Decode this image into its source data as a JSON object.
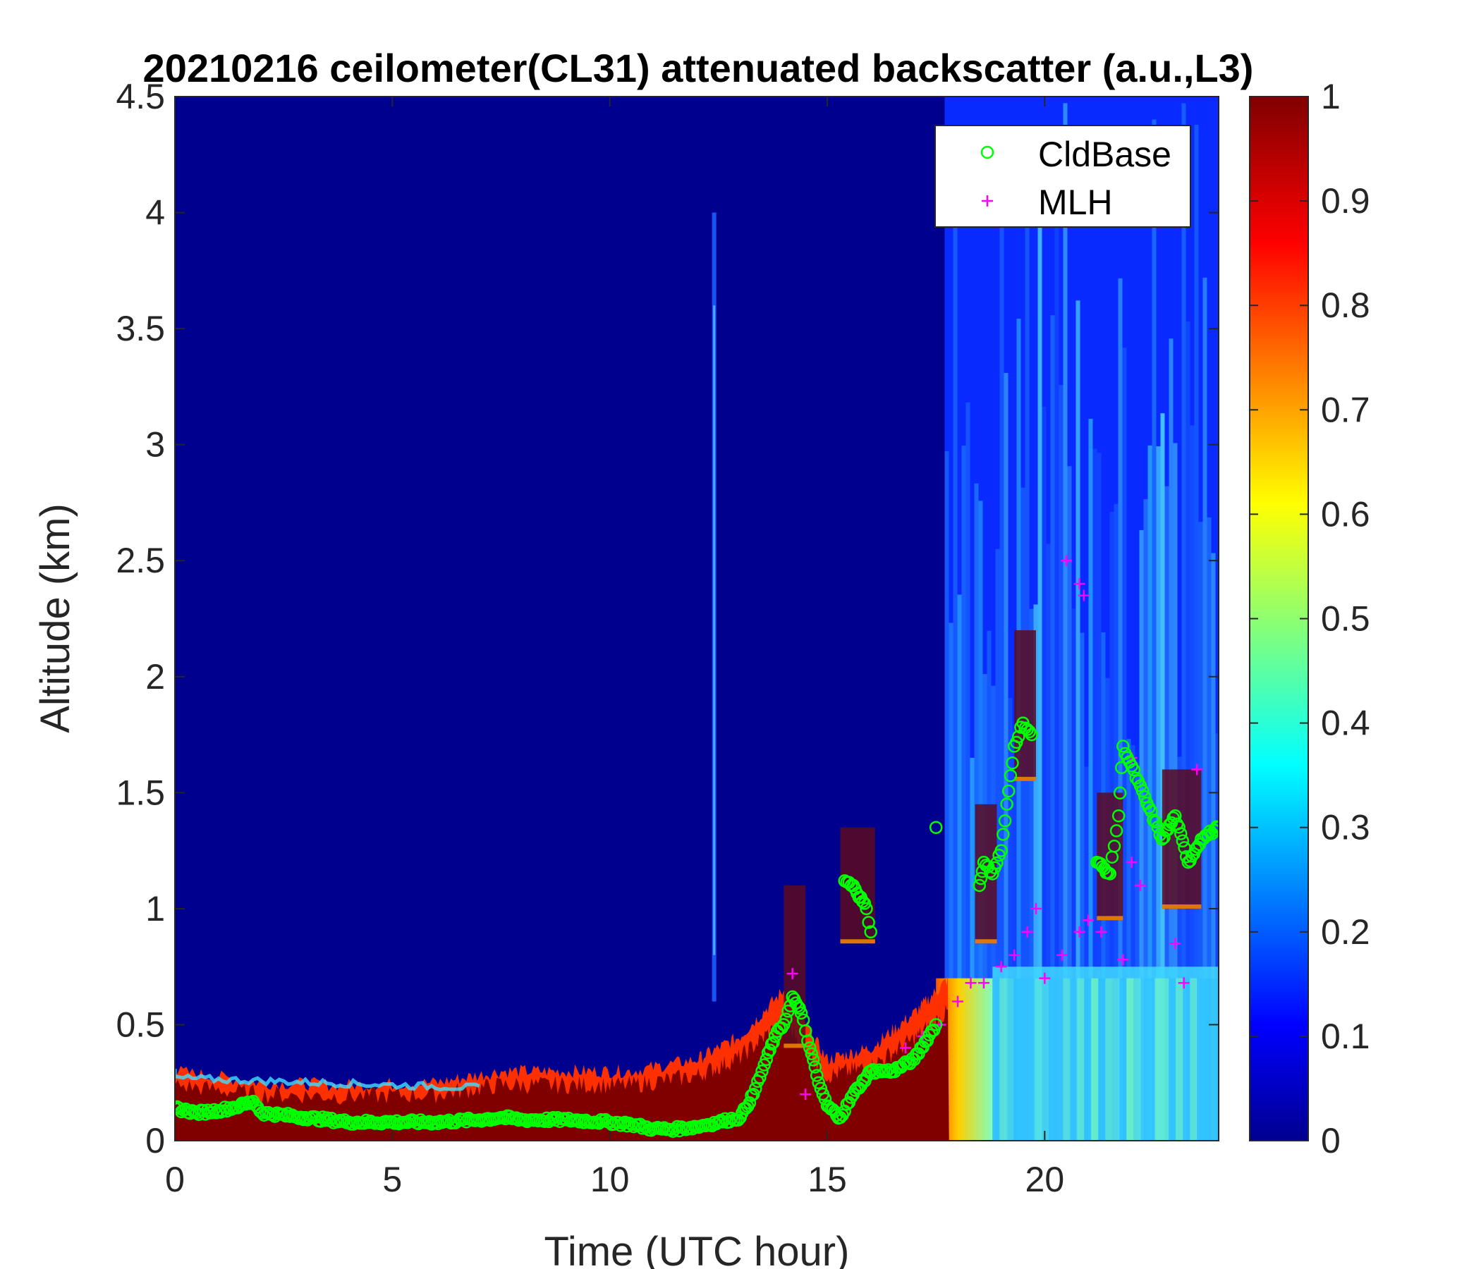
{
  "chart_data": {
    "type": "heatmap",
    "title": "20210216 ceilometer(CL31) attenuated backscatter (a.u.,L3)",
    "xlabel": "Time (UTC hour)",
    "ylabel": "Altitude (km)",
    "xlim": [
      0,
      24
    ],
    "ylim": [
      0,
      4.5
    ],
    "clim": [
      0,
      1
    ],
    "colormap": "jet",
    "x_ticks": [
      "0",
      "5",
      "10",
      "15",
      "20"
    ],
    "x_tick_values": [
      0,
      5,
      10,
      15,
      20
    ],
    "y_ticks": [
      "0",
      "0.5",
      "1",
      "1.5",
      "2",
      "2.5",
      "3",
      "3.5",
      "4",
      "4.5"
    ],
    "y_tick_values": [
      0,
      0.5,
      1,
      1.5,
      2,
      2.5,
      3,
      3.5,
      4,
      4.5
    ],
    "colorbar_ticks": [
      "0",
      "0.1",
      "0.2",
      "0.3",
      "0.4",
      "0.5",
      "0.6",
      "0.7",
      "0.8",
      "0.9",
      "1"
    ],
    "colorbar_tick_values": [
      0,
      0.1,
      0.2,
      0.3,
      0.4,
      0.5,
      0.6,
      0.7,
      0.8,
      0.9,
      1
    ],
    "legend_position": "top-right",
    "legend": [
      {
        "name": "CldBase",
        "marker": "circle",
        "color": "#00ff00"
      },
      {
        "name": "MLH",
        "marker": "plus",
        "color": "#ff00ff"
      }
    ],
    "surface_layer_top_km": [
      [
        0,
        0.3
      ],
      [
        2,
        0.25
      ],
      [
        4,
        0.24
      ],
      [
        6,
        0.25
      ],
      [
        7.5,
        0.3
      ],
      [
        9,
        0.3
      ],
      [
        10.5,
        0.3
      ],
      [
        12,
        0.35
      ],
      [
        13,
        0.45
      ],
      [
        14,
        0.65
      ],
      [
        15,
        0.35
      ],
      [
        16,
        0.4
      ],
      [
        17,
        0.55
      ],
      [
        17.8,
        0.7
      ]
    ],
    "cloud_base_series": [
      [
        0,
        0.14
      ],
      [
        0.5,
        0.12
      ],
      [
        1,
        0.13
      ],
      [
        1.5,
        0.15
      ],
      [
        1.8,
        0.17
      ],
      [
        2,
        0.12
      ],
      [
        3,
        0.1
      ],
      [
        4,
        0.08
      ],
      [
        5,
        0.08
      ],
      [
        6,
        0.08
      ],
      [
        7,
        0.09
      ],
      [
        7.5,
        0.1
      ],
      [
        8,
        0.09
      ],
      [
        9,
        0.09
      ],
      [
        10,
        0.08
      ],
      [
        10.5,
        0.07
      ],
      [
        11,
        0.05
      ],
      [
        11.5,
        0.05
      ],
      [
        12,
        0.06
      ],
      [
        12.5,
        0.08
      ],
      [
        13,
        0.1
      ],
      [
        13.3,
        0.2
      ],
      [
        13.6,
        0.35
      ],
      [
        13.8,
        0.45
      ],
      [
        14,
        0.5
      ],
      [
        14.2,
        0.62
      ],
      [
        14.4,
        0.55
      ],
      [
        14.6,
        0.4
      ],
      [
        14.8,
        0.25
      ],
      [
        15,
        0.15
      ],
      [
        15.3,
        0.1
      ],
      [
        15.6,
        0.2
      ],
      [
        16,
        0.3
      ],
      [
        16.5,
        0.3
      ],
      [
        17,
        0.35
      ],
      [
        17.5,
        0.5
      ],
      [
        17.5,
        1.35
      ],
      [
        15.4,
        1.12
      ],
      [
        15.6,
        1.1
      ],
      [
        15.9,
        1.0
      ],
      [
        16.0,
        0.9
      ],
      [
        18.5,
        1.1
      ],
      [
        18.6,
        1.2
      ],
      [
        18.8,
        1.15
      ],
      [
        19.0,
        1.25
      ],
      [
        19.3,
        1.7
      ],
      [
        19.5,
        1.8
      ],
      [
        19.7,
        1.75
      ],
      [
        21.2,
        1.2
      ],
      [
        21.5,
        1.15
      ],
      [
        21.7,
        1.4
      ],
      [
        21.8,
        1.7
      ],
      [
        22.7,
        1.3
      ],
      [
        23,
        1.4
      ],
      [
        23.3,
        1.2
      ],
      [
        23.6,
        1.3
      ],
      [
        24,
        1.35
      ]
    ],
    "mlh_series": [
      [
        14.2,
        0.72
      ],
      [
        14.5,
        0.2
      ],
      [
        16.8,
        0.4
      ],
      [
        17.2,
        0.45
      ],
      [
        17.6,
        0.5
      ],
      [
        18,
        0.6
      ],
      [
        18.3,
        0.68
      ],
      [
        18.6,
        0.68
      ],
      [
        19,
        0.75
      ],
      [
        19.3,
        0.8
      ],
      [
        19.6,
        0.9
      ],
      [
        19.8,
        1.0
      ],
      [
        20,
        0.7
      ],
      [
        20.4,
        0.8
      ],
      [
        20.8,
        0.9
      ],
      [
        21,
        0.95
      ],
      [
        21.3,
        0.9
      ],
      [
        21.8,
        0.78
      ],
      [
        22,
        1.2
      ],
      [
        22.2,
        1.1
      ],
      [
        20.5,
        2.5
      ],
      [
        20.8,
        2.4
      ],
      [
        20.9,
        2.35
      ],
      [
        22,
        1.65
      ],
      [
        23,
        0.85
      ],
      [
        23.2,
        0.68
      ],
      [
        23.5,
        1.6
      ]
    ]
  }
}
